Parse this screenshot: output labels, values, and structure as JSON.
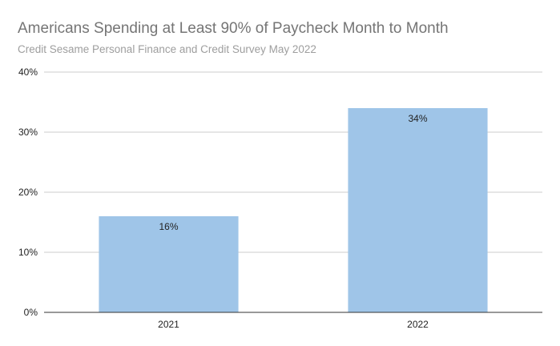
{
  "chart_data": {
    "type": "bar",
    "title": "Americans Spending at  Least 90% of Paycheck Month to Month",
    "subtitle": "Credit Sesame Personal Finance and Credit Survey May 2022",
    "categories": [
      "2021",
      "2022"
    ],
    "values": [
      16,
      34
    ],
    "data_labels": [
      "16%",
      "34%"
    ],
    "xlabel": "",
    "ylabel": "",
    "ylim": [
      0,
      40
    ],
    "yticks": [
      0,
      10,
      20,
      30,
      40
    ],
    "ytick_labels": [
      "0%",
      "10%",
      "20%",
      "30%",
      "40%"
    ],
    "grid": true,
    "legend": "none",
    "bar_color": "#9fc5e8"
  }
}
